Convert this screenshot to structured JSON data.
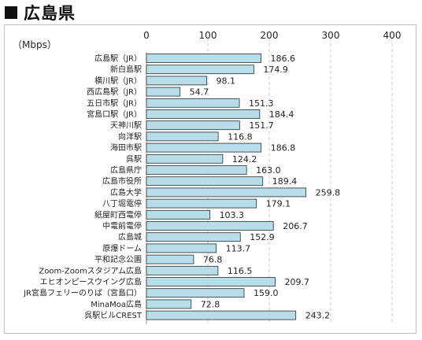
{
  "page": {
    "title": "広島県",
    "colors": {
      "bar_fill": "#b7dde8",
      "bar_stroke": "#2b2b2b",
      "grid": "#c8c8c8",
      "frame": "#bfbfbf"
    }
  },
  "chart_data": {
    "type": "bar",
    "orientation": "horizontal",
    "unit_label": "（Mbps）",
    "xlim": [
      0,
      400
    ],
    "x_ticks": [
      0,
      100,
      200,
      300,
      400
    ],
    "grid": "vertical dashed",
    "categories": [
      "広島駅（JR）",
      "新白島駅",
      "横川駅（JR）",
      "西広島駅（JR）",
      "五日市駅（JR）",
      "宮島口駅（JR）",
      "天神川駅",
      "向洋駅",
      "海田市駅",
      "呉駅",
      "広島県庁",
      "広島市役所",
      "広島大学",
      "八丁堀電停",
      "紙屋町西電停",
      "中電前電停",
      "広島城",
      "原爆ドーム",
      "平和記念公園",
      "Zoom-Zoomスタジアム広島",
      "エヒオンピースウイング広島",
      "JR宮島フェリーのりば（宮島口）",
      "MinaMoa広島",
      "呉駅ビルCREST"
    ],
    "values": [
      186.6,
      174.9,
      98.1,
      54.7,
      151.3,
      184.4,
      151.7,
      116.8,
      186.8,
      124.2,
      163.0,
      189.4,
      259.8,
      179.1,
      103.3,
      206.7,
      152.9,
      113.7,
      76.8,
      116.5,
      209.7,
      159.0,
      72.8,
      243.2
    ],
    "value_labels": [
      "186.6",
      "174.9",
      "98.1",
      "54.7",
      "151.3",
      "184.4",
      "151.7",
      "116.8",
      "186.8",
      "124.2",
      "163.0",
      "189.4",
      "259.8",
      "179.1",
      "103.3",
      "206.7",
      "152.9",
      "113.7",
      "76.8",
      "116.5",
      "209.7",
      "159.0",
      "72.8",
      "243.2"
    ]
  }
}
